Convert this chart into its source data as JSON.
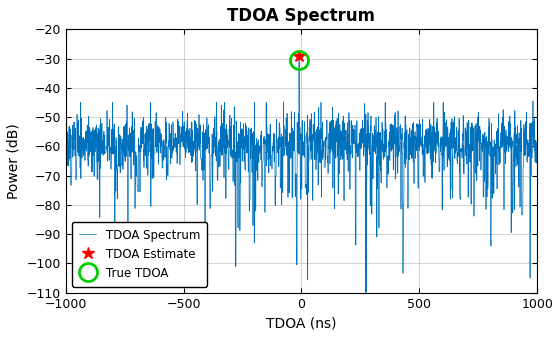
{
  "title": "TDOA Spectrum",
  "xlabel": "TDOA (ns)",
  "ylabel": "Power (dB)",
  "xlim": [
    -1000,
    1000
  ],
  "ylim": [
    -110,
    -20
  ],
  "yticks": [
    -20,
    -30,
    -40,
    -50,
    -60,
    -70,
    -80,
    -90,
    -100,
    -110
  ],
  "xticks": [
    -1000,
    -500,
    0,
    500,
    1000
  ],
  "line_color": "#0072BD",
  "estimate_marker": "*",
  "estimate_color": "red",
  "estimate_x": -10,
  "estimate_y": -29.0,
  "true_marker": "o",
  "true_color": "#00CC00",
  "true_x": -10,
  "true_y": -30.5,
  "noise_floor": -57,
  "noise_std": 7,
  "peak_x": -10,
  "peak_y": -29,
  "seed": 7,
  "n_points": 4001,
  "legend_labels": [
    "TDOA Spectrum",
    "TDOA Estimate",
    "True TDOA"
  ],
  "title_fontsize": 12,
  "label_fontsize": 10
}
